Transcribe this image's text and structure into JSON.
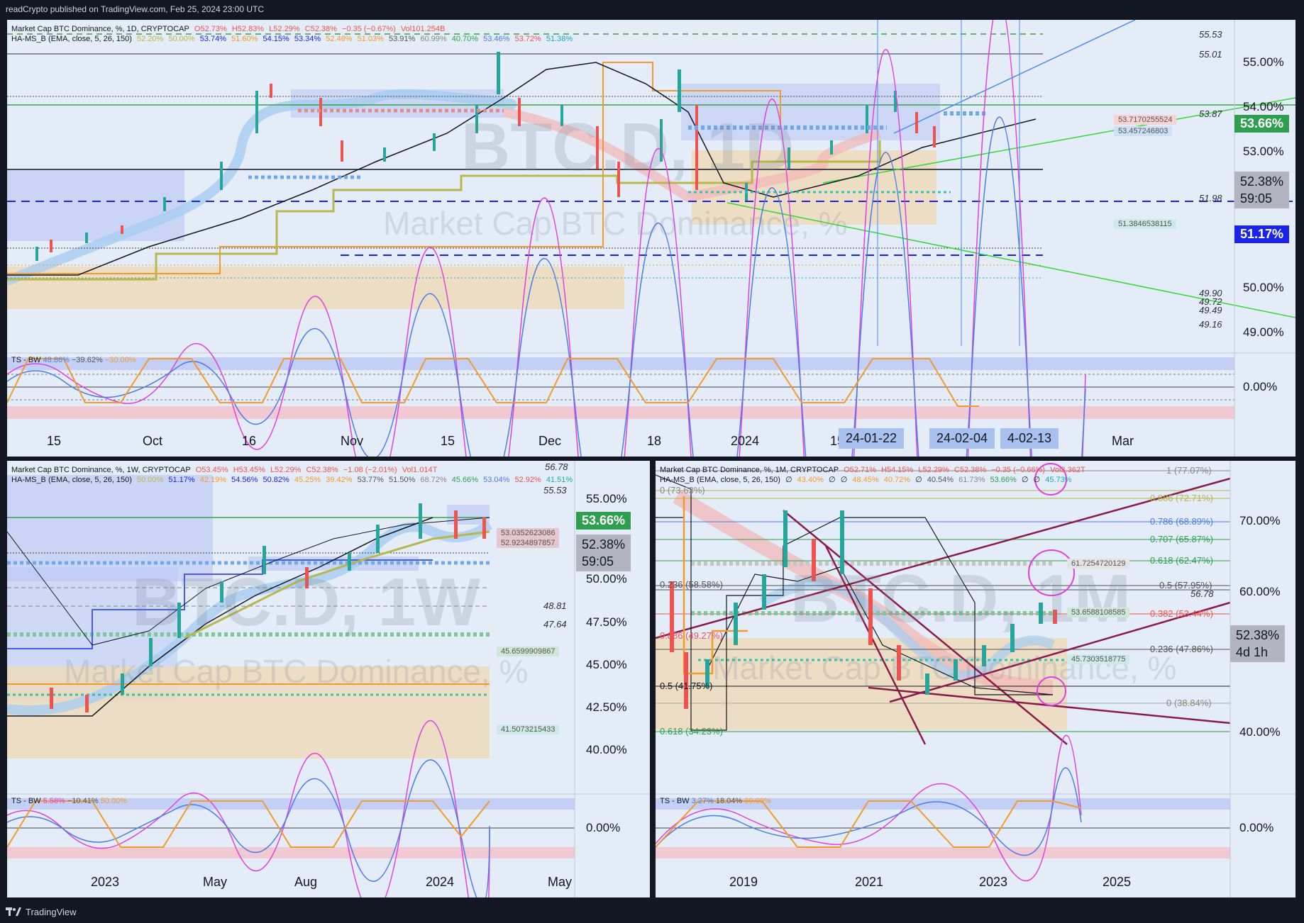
{
  "header": {
    "text": "readCrypto published on TradingView.com, Feb 25, 2024 23:00 UTC"
  },
  "footer": {
    "brand": "TradingView"
  },
  "colors": {
    "up": "#26a69a",
    "down": "#ef5350",
    "accent_green": "#2e9e4f",
    "blue_line": "#1a23e8",
    "bg_panel": "#e3ecf7",
    "bg_dark": "#131722"
  },
  "top": {
    "legend1": {
      "symbol": "Market Cap BTC Dominance, %, 1D, CRYPTOCAP",
      "o": "O52.73%",
      "h": "H52.83%",
      "l": "L52.29%",
      "c": "C52.38%",
      "chg": "−0.35 (−0.67%)",
      "vol": "Vol101.254B"
    },
    "legend2": {
      "name": "HA-MS_B (EMA, close, 5, 26, 150)",
      "v1": "52.20%",
      "v2": "50.00%",
      "v3": "53.74%",
      "v4": "51.60%",
      "v5": "54.15%",
      "v6": "53.34%",
      "v7": "52.48%",
      "v8": "51.03%",
      "v9": "53.91%",
      "v10": "60.99%",
      "v11": "40.70%",
      "v12": "53.46%",
      "v13": "53.72%",
      "v14": "51.38%"
    },
    "watermark": "BTC.D, 1D",
    "watermark_sub": "Market Cap BTC Dominance, %",
    "price_labels": [
      "55.00%",
      "54.00%",
      "53.00%",
      "50.00%",
      "49.00%"
    ],
    "level_labels": [
      "55.53",
      "55.01",
      "53.87",
      "51.98",
      "49.90",
      "49.72",
      "49.49",
      "49.16"
    ],
    "tags": {
      "t1": "53.7170255524",
      "t2": "53.457246803",
      "t3": "51.3846538115"
    },
    "big_tags": {
      "green": "53.66%",
      "price": "52.38%",
      "countdown": "59:05",
      "blue": "51.17%"
    },
    "osc": {
      "title": "TS - BW",
      "v1": "48.86%",
      "v2": "−39.62%",
      "v3": "−30.00%",
      "zero": "0.00%"
    },
    "time_labels": [
      "15",
      "Oct",
      "16",
      "Nov",
      "15",
      "Dec",
      "18",
      "2024",
      "15",
      "Mar"
    ],
    "date_boxes": [
      "24-01-22",
      "24-02-04",
      "4-02-13"
    ]
  },
  "bl": {
    "legend1": {
      "symbol": "Market Cap BTC Dominance, %, 1W, CRYPTOCAP",
      "o": "O53.45%",
      "h": "H53.45%",
      "l": "L52.29%",
      "c": "C52.38%",
      "chg": "−1.08 (−2.01%)",
      "vol": "Vol1.014T"
    },
    "legend2": {
      "name": "HA-MS_B (EMA, close, 5, 26, 150)",
      "v1": "50.00%",
      "v2": "51.17%",
      "v3": "42.19%",
      "v4": "54.56%",
      "v5": "50.82%",
      "v6": "45.25%",
      "v7": "39.42%",
      "v8": "53.77%",
      "v9": "51.50%",
      "v10": "68.72%",
      "v11": "45.66%",
      "v12": "53.04%",
      "v13": "52.92%",
      "v14": "41.51%"
    },
    "watermark": "BTC.D, 1W",
    "watermark_sub": "Market Cap BTC Dominance, %",
    "price_labels": [
      "55.00%",
      "52.50%",
      "50.00%",
      "47.50%",
      "45.00%",
      "42.50%",
      "40.00%"
    ],
    "level_labels": [
      "56.78",
      "55.53",
      "48.81",
      "47.64"
    ],
    "tags": {
      "t1": "53.0352623086",
      "t2": "52.9234897857",
      "t3": "45.6599909867",
      "t4": "41.5073215433"
    },
    "big_tags": {
      "green": "53.66%",
      "price": "52.38%",
      "countdown": "59:05"
    },
    "osc": {
      "title": "TS - BW",
      "v1": "5.58%",
      "v2": "−10.41%",
      "v3": "50.00%",
      "zero": "0.00%"
    },
    "time_labels": [
      "2023",
      "May",
      "Aug",
      "2024",
      "May"
    ]
  },
  "br": {
    "legend1": {
      "symbol": "Market Cap BTC Dominance, %, 1M, CRYPTOCAP",
      "o": "O52.71%",
      "h": "H54.15%",
      "l": "L52.29%",
      "c": "C52.38%",
      "chg": "−0.35 (−0.66%)",
      "vol": "Vol3.362T"
    },
    "legend2": {
      "name": "HA-MS_B (EMA, close, 5, 26, 150)",
      "v1": "∅",
      "v2": "43.40%",
      "v3": "∅",
      "v4": "∅",
      "v5": "48.45%",
      "v6": "40.72%",
      "v7": "∅",
      "v8": "40.54%",
      "v9": "61.73%",
      "v10": "53.66%",
      "v11": "∅",
      "v12": "∅",
      "v13": "45.73%"
    },
    "watermark": "BTC.D, 1M",
    "watermark_sub": "Market Cap BTC Dominance, %",
    "price_labels": [
      "70.00%",
      "60.00%",
      "40.00%"
    ],
    "fib_labels": {
      "f1": "1 (77.07%)",
      "f0": "0 (73.63%)",
      "f886": "0.886 (72.71%)",
      "f786": "0.786 (68.89%)",
      "f707": "0.707 (65.87%)",
      "f618": "0.618 (62.47%)",
      "f236a": "0.236 (58.58%)",
      "f5a": "0.5 (57.95%)",
      "f382": "0.382 (53.44%)",
      "f886b": "0.886 (49.27%)",
      "f236b": "0.236 (47.86%)",
      "f5b": "0.5 (41.75%)",
      "f0b": "0 (38.84%)",
      "f618b": "0.618 (34.23%)"
    },
    "level_labels": [
      "56.78"
    ],
    "tags": {
      "t1": "61.7254720129",
      "t2": "53.6588108585",
      "t3": "45.7303518775"
    },
    "big_tags": {
      "price": "52.38%",
      "countdown": "4d 1h"
    },
    "osc": {
      "title": "TS - BW",
      "v1": "3.27%",
      "v2": "18.04%",
      "v3": "30.00%",
      "zero": "0.00%"
    },
    "time_labels": [
      "2019",
      "2021",
      "2023",
      "2025"
    ]
  }
}
